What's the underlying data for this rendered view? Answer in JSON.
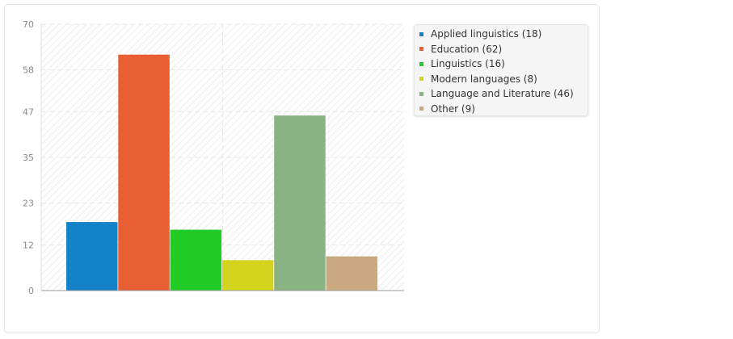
{
  "chart_data": {
    "type": "bar",
    "categories": [
      "Applied linguistics",
      "Education",
      "Linguistics",
      "Modern languages",
      "Language and Literature",
      "Other"
    ],
    "values": [
      18,
      62,
      16,
      8,
      46,
      9
    ],
    "colors": [
      "#1382c9",
      "#e85f33",
      "#21cc26",
      "#d4d41e",
      "#8ab383",
      "#c9aa80"
    ],
    "legend_labels": [
      "Applied linguistics (18)",
      "Education (62)",
      "Linguistics (16)",
      "Modern languages (8)",
      "Language and Literature (46)",
      "Other (9)"
    ],
    "ylim": [
      0,
      70
    ],
    "yticks": [
      0,
      12,
      23,
      35,
      47,
      58,
      70
    ],
    "grid": true,
    "legend_position": "right"
  }
}
